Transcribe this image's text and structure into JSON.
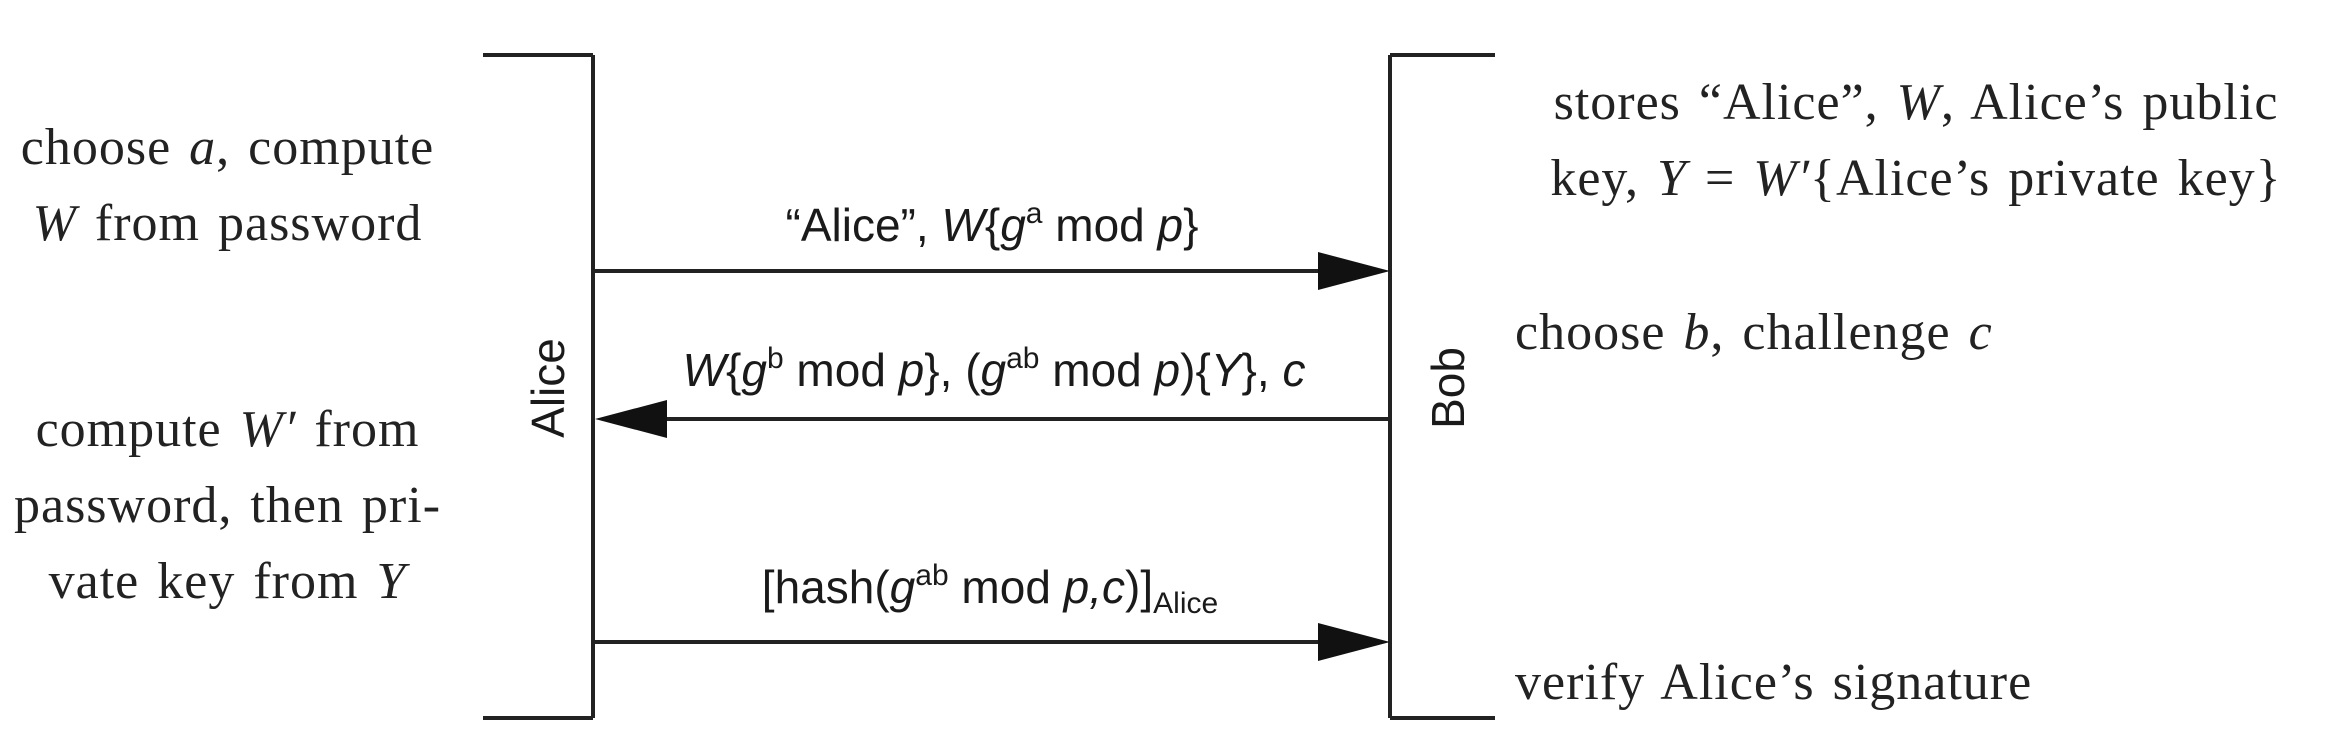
{
  "parties": {
    "left": "Alice",
    "right": "Bob"
  },
  "alice_notes": {
    "step1": [
      "choose a, compute",
      "W from password"
    ],
    "step2": [
      "compute W′ from",
      "password, then pri-",
      "vate key from Y"
    ]
  },
  "bob_notes": {
    "step1": [
      "stores “Alice”, W, Alice’s public",
      "key, Y = W′{Alice’s private key}"
    ],
    "step2": "choose b, challenge c",
    "step3": "verify Alice’s signature"
  },
  "messages": [
    {
      "direction": "to-bob",
      "text": "“Alice”, W{g^a mod p}"
    },
    {
      "direction": "to-alice",
      "text": "W{g^b mod p}, (g^ab mod p){Y}, c"
    },
    {
      "direction": "to-bob",
      "text": "[hash(g^ab mod p,c)]_Alice"
    }
  ],
  "msg1": {
    "pre": "“Alice”, ",
    "W": "W",
    "lb": "{",
    "g": "g",
    "exp": "a",
    "rest": " mod ",
    "p": "p",
    "rb": "}"
  },
  "msg2": {
    "W": "W",
    "lb": "{",
    "g": "g",
    "exp": "b",
    "mid": " mod ",
    "p": "p",
    "rb1": "}, (",
    "g2": "g",
    "exp2": "ab",
    "mid2": " mod ",
    "p2": "p",
    "tail": "){",
    "Y": "Y",
    "tail2": "}, ",
    "c": "c"
  },
  "msg3": {
    "pre": "[hash(",
    "g": "g",
    "exp": "ab",
    "mid": " mod ",
    "pc": "p,c",
    "close": ")]",
    "sub": "Alice"
  }
}
